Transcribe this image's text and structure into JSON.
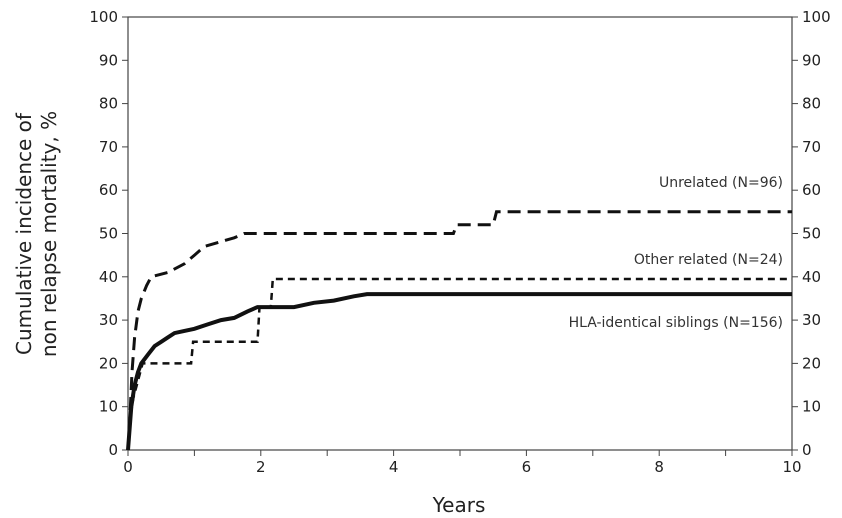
{
  "chart_data": {
    "type": "line",
    "title": "",
    "xlabel": "Years",
    "ylabel_line1": "Cumulative incidence of",
    "ylabel_line2": "non relapse mortality, %",
    "xlim": [
      0,
      10
    ],
    "ylim": [
      0,
      100
    ],
    "x_ticks": [
      0,
      2,
      4,
      6,
      8,
      10
    ],
    "y_ticks": [
      0,
      10,
      20,
      30,
      40,
      50,
      60,
      70,
      80,
      90,
      100
    ],
    "secondary_y_axis": true,
    "grid": false,
    "series": [
      {
        "name": "Unrelated (N=96)",
        "line_style": "dashed-long",
        "stroke_width": 3,
        "color": "#111111",
        "points": [
          [
            0,
            0
          ],
          [
            0.03,
            8
          ],
          [
            0.06,
            18
          ],
          [
            0.1,
            26
          ],
          [
            0.15,
            32
          ],
          [
            0.2,
            35
          ],
          [
            0.28,
            38
          ],
          [
            0.35,
            40
          ],
          [
            0.6,
            41
          ],
          [
            0.85,
            43
          ],
          [
            1.0,
            45
          ],
          [
            1.15,
            47
          ],
          [
            1.6,
            49
          ],
          [
            1.75,
            50
          ],
          [
            4.9,
            50
          ],
          [
            4.95,
            52
          ],
          [
            5.5,
            52
          ],
          [
            5.55,
            55
          ],
          [
            10,
            55
          ]
        ]
      },
      {
        "name": "Other related (N=24)",
        "line_style": "dashed-short",
        "stroke_width": 2.5,
        "color": "#111111",
        "points": [
          [
            0,
            0
          ],
          [
            0.04,
            8
          ],
          [
            0.08,
            12
          ],
          [
            0.15,
            16
          ],
          [
            0.22,
            20
          ],
          [
            0.95,
            20
          ],
          [
            0.98,
            25
          ],
          [
            1.95,
            25
          ],
          [
            1.98,
            33
          ],
          [
            2.15,
            33
          ],
          [
            2.18,
            39.5
          ],
          [
            10,
            39.5
          ]
        ]
      },
      {
        "name": "HLA-identical siblings (N=156)",
        "line_style": "solid",
        "stroke_width": 4,
        "color": "#111111",
        "points": [
          [
            0,
            0
          ],
          [
            0.05,
            10
          ],
          [
            0.1,
            15
          ],
          [
            0.15,
            18
          ],
          [
            0.2,
            20
          ],
          [
            0.3,
            22
          ],
          [
            0.4,
            24
          ],
          [
            0.5,
            25
          ],
          [
            0.6,
            26
          ],
          [
            0.7,
            27
          ],
          [
            0.85,
            27.5
          ],
          [
            1.0,
            28
          ],
          [
            1.2,
            29
          ],
          [
            1.4,
            30
          ],
          [
            1.6,
            30.5
          ],
          [
            1.8,
            32
          ],
          [
            1.95,
            33
          ],
          [
            2.5,
            33
          ],
          [
            2.8,
            34
          ],
          [
            3.1,
            34.5
          ],
          [
            3.4,
            35.5
          ],
          [
            3.6,
            36
          ],
          [
            10,
            36
          ]
        ]
      }
    ]
  }
}
